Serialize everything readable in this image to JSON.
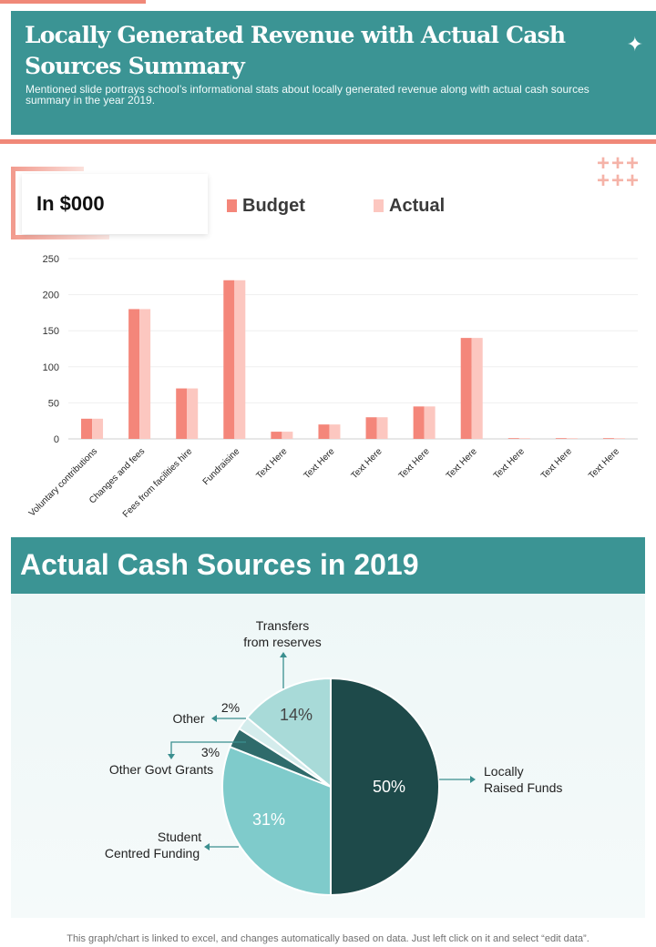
{
  "header": {
    "title": "Locally Generated Revenue with Actual Cash Sources Summary",
    "subtitle": "Mentioned slide portrays school’s informational stats about locally generated revenue along with actual cash sources summary in the year 2019.",
    "star_icon": "sparkle-icon"
  },
  "bar_section": {
    "unit_label": "In $000",
    "legend": [
      {
        "label": "Budget",
        "color": "#f4867a"
      },
      {
        "label": "Actual",
        "color": "#fcc7c0"
      }
    ]
  },
  "pie_section": {
    "title": "Actual Cash Sources in 2019"
  },
  "footer": {
    "note": "This graph/chart is linked to excel,  and changes automatically based on data. Just left click on it and select “edit data”."
  },
  "colors": {
    "teal": "#3b9494",
    "coral": "#f08878",
    "budget": "#f4867a",
    "actual": "#fcc7c0"
  },
  "chart_data": [
    {
      "type": "bar",
      "categories": [
        "Voluntary contributions",
        "Changes and fees",
        "Fees from facilities hire",
        "Fundraisine",
        "Text Here",
        "Text Here",
        "Text Here",
        "Text Here",
        "Text Here",
        "Text Here",
        "Text Here",
        "Text Here"
      ],
      "series": [
        {
          "name": "Budget",
          "values": [
            28,
            180,
            70,
            220,
            10,
            20,
            30,
            45,
            140,
            1,
            1,
            1
          ]
        },
        {
          "name": "Actual",
          "values": [
            28,
            180,
            70,
            220,
            10,
            20,
            30,
            45,
            140,
            1,
            1,
            1
          ]
        }
      ],
      "ylim": [
        0,
        250
      ],
      "yticks": [
        0,
        50,
        100,
        150,
        200,
        250
      ],
      "grid": true,
      "legend": "top"
    },
    {
      "type": "pie",
      "slices": [
        {
          "label": "Locally Raised Funds",
          "value": 50,
          "value_label": "50%",
          "color": "#1e4a4a"
        },
        {
          "label": "Student Centred Funding",
          "value": 31,
          "value_label": "31%",
          "color": "#7fcbcb"
        },
        {
          "label": "Other Govt Grants",
          "value": 3,
          "value_label": "3%",
          "color": "#2f6b6b"
        },
        {
          "label": "Other",
          "value": 2,
          "value_label": "2%",
          "color": "#d4ecec"
        },
        {
          "label": "Transfers from reserves",
          "value": 14,
          "value_label": "14%",
          "color": "#a8dad8"
        }
      ]
    }
  ]
}
